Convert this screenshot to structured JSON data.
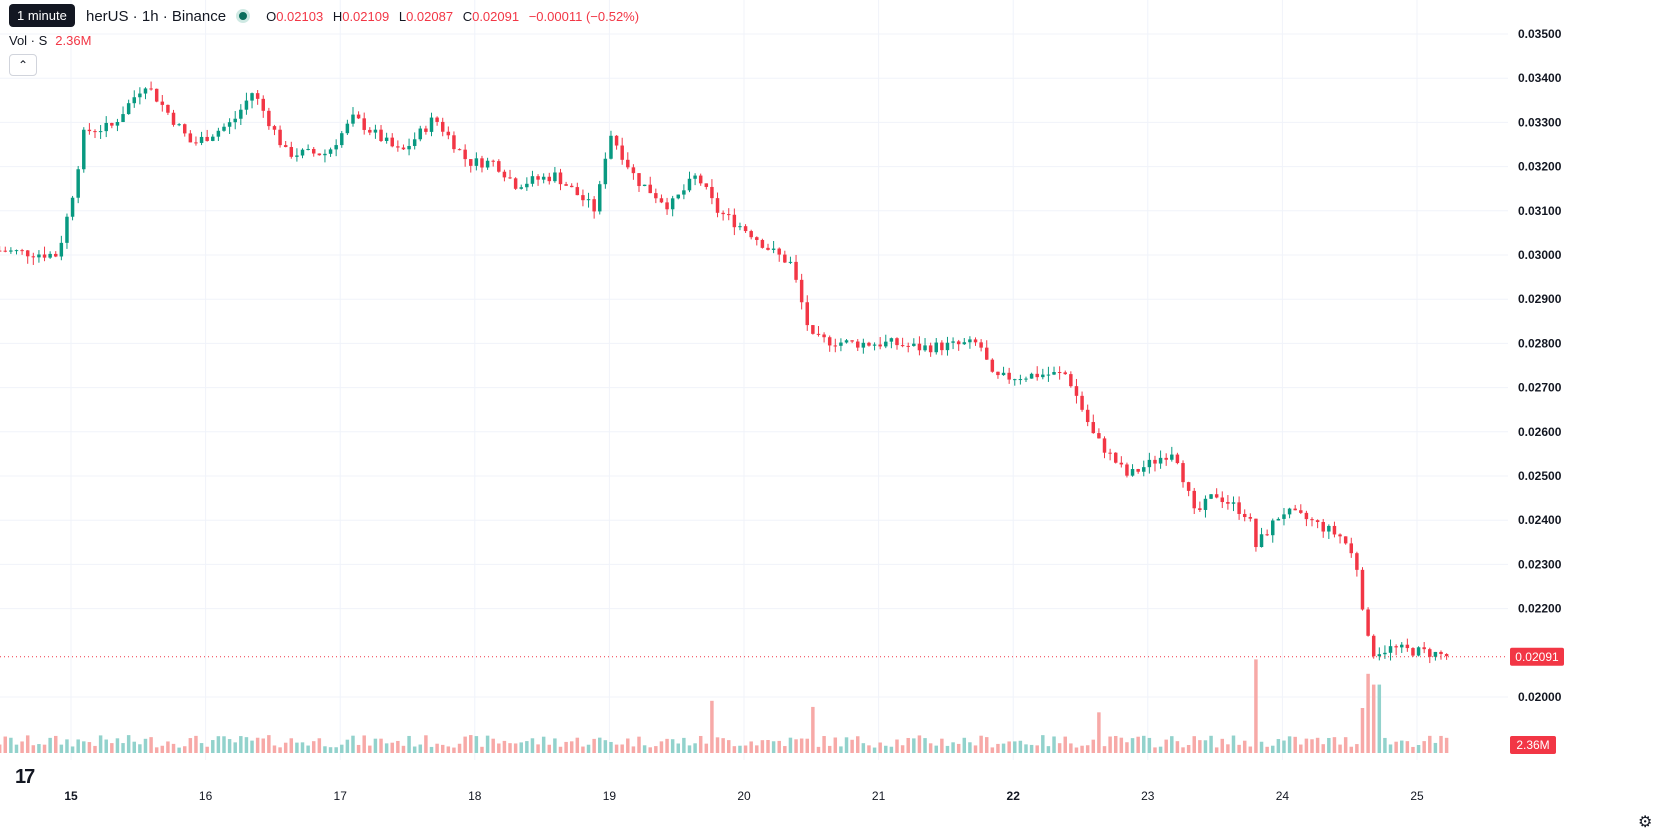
{
  "header": {
    "tooltip": "1 minute",
    "title": "herUS · 1h · Binance",
    "ohlc": [
      {
        "key": "O",
        "value": "0.02103"
      },
      {
        "key": "H",
        "value": "0.02109"
      },
      {
        "key": "L",
        "value": "0.02087"
      },
      {
        "key": "C",
        "value": "0.02091"
      },
      {
        "key": "",
        "value": "−0.00011 (−0.52%)"
      }
    ],
    "vol_label": "Vol · S",
    "vol_value": "2.36M",
    "collapse_icon": "chevron-up-icon"
  },
  "footer": {
    "logo": "TradingView logo",
    "settings_icon": "gear-icon"
  },
  "colors": {
    "up": "#089981",
    "down": "#f23645",
    "up_vol": "#92d2cc",
    "down_vol": "#f7a9a7",
    "grid": "#f0f3fa"
  },
  "chart_data": {
    "type": "candlestick",
    "interval": "1h",
    "price_axis": {
      "ticks": [
        "0.03500",
        "0.03400",
        "0.03300",
        "0.03200",
        "0.03100",
        "0.03000",
        "0.02900",
        "0.02800",
        "0.02700",
        "0.02600",
        "0.02500",
        "0.02400",
        "0.02300",
        "0.02200",
        "0.02000"
      ],
      "ylim": [
        0.0196,
        0.0354
      ],
      "last_price_label": "0.02091",
      "last_price": 0.02091,
      "volume_label": "2.36M"
    },
    "time_axis": {
      "labels": [
        {
          "text": "15",
          "day": 15,
          "bold": true
        },
        {
          "text": "16",
          "day": 16,
          "bold": false
        },
        {
          "text": "17",
          "day": 17,
          "bold": false
        },
        {
          "text": "18",
          "day": 18,
          "bold": false
        },
        {
          "text": "19",
          "day": 19,
          "bold": false
        },
        {
          "text": "20",
          "day": 20,
          "bold": false
        },
        {
          "text": "21",
          "day": 21,
          "bold": false
        },
        {
          "text": "22",
          "day": 22,
          "bold": true
        },
        {
          "text": "23",
          "day": 23,
          "bold": false
        },
        {
          "text": "24",
          "day": 24,
          "bold": false
        },
        {
          "text": "25",
          "day": 25,
          "bold": false
        }
      ],
      "range_days": [
        14.46,
        26.2
      ]
    },
    "price_anchors": [
      [
        14.47,
        0.0301
      ],
      [
        14.9,
        0.03
      ],
      [
        15.0,
        0.0312
      ],
      [
        15.1,
        0.0328
      ],
      [
        15.3,
        0.0329
      ],
      [
        15.55,
        0.0339
      ],
      [
        15.9,
        0.0325
      ],
      [
        16.2,
        0.033
      ],
      [
        16.35,
        0.0337
      ],
      [
        16.6,
        0.0323
      ],
      [
        16.9,
        0.0323
      ],
      [
        17.1,
        0.0331
      ],
      [
        17.45,
        0.0323
      ],
      [
        17.7,
        0.0331
      ],
      [
        17.95,
        0.0321
      ],
      [
        18.15,
        0.0321
      ],
      [
        18.3,
        0.0316
      ],
      [
        18.6,
        0.0318
      ],
      [
        18.9,
        0.031
      ],
      [
        19.0,
        0.0328
      ],
      [
        19.2,
        0.0317
      ],
      [
        19.45,
        0.0311
      ],
      [
        19.65,
        0.0318
      ],
      [
        19.8,
        0.031
      ],
      [
        20.05,
        0.0305
      ],
      [
        20.2,
        0.0301
      ],
      [
        20.35,
        0.0298
      ],
      [
        20.5,
        0.0281
      ],
      [
        20.8,
        0.028
      ],
      [
        21.1,
        0.028
      ],
      [
        21.3,
        0.0279
      ],
      [
        21.75,
        0.028
      ],
      [
        21.85,
        0.0272
      ],
      [
        22.2,
        0.0273
      ],
      [
        22.4,
        0.0273
      ],
      [
        22.6,
        0.0259
      ],
      [
        22.85,
        0.025
      ],
      [
        23.2,
        0.0256
      ],
      [
        23.35,
        0.0241
      ],
      [
        23.5,
        0.0246
      ],
      [
        23.75,
        0.0241
      ],
      [
        23.8,
        0.0234
      ],
      [
        24.0,
        0.0242
      ],
      [
        24.2,
        0.024
      ],
      [
        24.45,
        0.0236
      ],
      [
        24.55,
        0.023
      ],
      [
        24.65,
        0.021
      ],
      [
        24.8,
        0.0211
      ],
      [
        25.1,
        0.021
      ],
      [
        25.25,
        0.02091
      ]
    ],
    "volume_spikes": [
      {
        "day": 23.79,
        "volume": 2.6
      },
      {
        "day": 24.6,
        "volume": 1.25
      },
      {
        "day": 24.65,
        "volume": 2.2
      },
      {
        "day": 24.7,
        "volume": 1.9
      },
      {
        "day": 19.75,
        "volume": 1.45
      },
      {
        "day": 20.5,
        "volume": 1.28
      },
      {
        "day": 22.65,
        "volume": 1.13
      }
    ]
  }
}
